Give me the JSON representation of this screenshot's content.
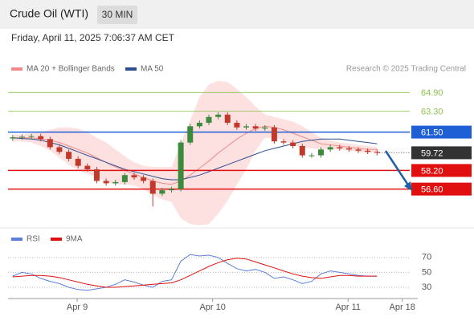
{
  "header": {
    "title": "Crude Oil (WTI)",
    "interval": "30 MIN",
    "timestamp": "Friday, April 11, 2025 7:06:37 AM CET",
    "credit": "Research © 2025 Trading Central"
  },
  "chart_data": [
    {
      "type": "candlestick",
      "xlim": [
        -0.5,
        42.5
      ],
      "ylim": [
        53.4,
        66.3
      ],
      "up_color": "#3c8a3c",
      "down_color": "#c0392b",
      "open": [
        60.95,
        61.05,
        61.1,
        61.15,
        60.9,
        60.2,
        59.8,
        59.2,
        58.6,
        58.3,
        57.3,
        57.1,
        57.2,
        57.8,
        57.6,
        57.3,
        56.2,
        56.5,
        56.6,
        60.6,
        62.0,
        62.3,
        62.8,
        63.0,
        62.3,
        61.9,
        62.0,
        61.8,
        61.9,
        60.7,
        60.6,
        60.3,
        59.5,
        59.5,
        60.0,
        60.2,
        60.1,
        60.0,
        59.9,
        59.8
      ],
      "high": [
        61.25,
        61.3,
        61.35,
        61.35,
        61.1,
        60.4,
        60.0,
        59.4,
        58.8,
        58.5,
        57.5,
        57.4,
        58.0,
        58.0,
        57.8,
        57.5,
        56.7,
        56.8,
        60.8,
        62.2,
        62.5,
        63.0,
        63.2,
        63.2,
        62.5,
        62.2,
        62.2,
        62.1,
        62.1,
        60.9,
        60.8,
        60.5,
        59.7,
        60.2,
        60.4,
        60.4,
        60.3,
        60.2,
        60.1,
        60.0
      ],
      "low": [
        60.75,
        60.85,
        60.9,
        60.7,
        60.0,
        59.6,
        59.0,
        58.4,
        58.1,
        57.1,
        56.9,
        56.9,
        57.0,
        57.4,
        57.1,
        55.1,
        56.0,
        56.3,
        56.4,
        60.4,
        61.8,
        62.1,
        62.6,
        62.1,
        61.7,
        61.7,
        61.6,
        61.6,
        60.5,
        60.4,
        60.1,
        59.3,
        59.3,
        59.3,
        59.8,
        59.9,
        59.8,
        59.7,
        59.6,
        59.5
      ],
      "close": [
        61.05,
        61.1,
        61.15,
        60.9,
        60.2,
        59.8,
        59.2,
        58.6,
        58.3,
        57.3,
        57.1,
        57.2,
        57.8,
        57.6,
        57.3,
        56.2,
        56.5,
        56.6,
        60.6,
        62.0,
        62.3,
        62.8,
        63.0,
        62.3,
        61.9,
        62.0,
        61.8,
        61.9,
        60.7,
        60.6,
        60.3,
        59.5,
        59.5,
        60.0,
        60.2,
        60.1,
        60.0,
        59.9,
        59.8,
        59.72
      ],
      "overlays": [
        {
          "name": "MA 20 + Bollinger Bands",
          "color": "#f08a8a",
          "band_color": "#fde0e0",
          "values": [
            61.0,
            61.0,
            61.0,
            60.9,
            60.8,
            60.6,
            60.3,
            60.0,
            59.7,
            59.3,
            58.9,
            58.5,
            58.2,
            57.9,
            57.6,
            57.3,
            57.1,
            57.0,
            57.3,
            57.8,
            58.4,
            59.0,
            59.7,
            60.3,
            60.9,
            61.4,
            61.8,
            62.0,
            61.9,
            61.7,
            61.4,
            61.1,
            60.8,
            60.5,
            60.4,
            60.3,
            60.2,
            60.1,
            60.0,
            60.0
          ],
          "upper": [
            61.3,
            61.3,
            61.4,
            61.5,
            61.7,
            61.9,
            61.9,
            61.8,
            61.5,
            61.0,
            60.6,
            60.0,
            59.4,
            58.9,
            58.6,
            58.5,
            58.5,
            58.5,
            60.5,
            62.5,
            64.5,
            65.6,
            65.9,
            65.8,
            65.2,
            64.5,
            63.7,
            63.0,
            62.8,
            62.6,
            62.4,
            62.0,
            61.5,
            61.0,
            60.8,
            60.6,
            60.5,
            60.4,
            60.3,
            60.2
          ],
          "lower": [
            60.7,
            60.7,
            60.6,
            60.3,
            59.9,
            59.3,
            58.7,
            58.2,
            57.9,
            57.6,
            57.2,
            57.0,
            57.0,
            56.9,
            56.6,
            56.1,
            55.7,
            55.5,
            54.1,
            53.6,
            53.5,
            53.6,
            54.5,
            55.6,
            57.0,
            58.3,
            59.9,
            61.0,
            61.0,
            60.8,
            60.4,
            60.2,
            60.1,
            60.0,
            60.0,
            60.0,
            59.9,
            59.8,
            59.7,
            59.8
          ]
        },
        {
          "name": "MA 50",
          "color": "#2c4f8f",
          "values": [
            61.0,
            60.95,
            60.9,
            60.8,
            60.6,
            60.4,
            60.1,
            59.8,
            59.5,
            59.2,
            58.9,
            58.6,
            58.3,
            58.1,
            57.9,
            57.7,
            57.5,
            57.4,
            57.4,
            57.6,
            57.8,
            58.1,
            58.4,
            58.7,
            59.0,
            59.3,
            59.6,
            59.9,
            60.1,
            60.3,
            60.5,
            60.7,
            60.8,
            60.9,
            60.9,
            60.9,
            60.8,
            60.7,
            60.6,
            60.5
          ]
        }
      ],
      "levels": [
        {
          "value": 64.9,
          "label": "64.90",
          "color": "#8bc34a",
          "style": "plain"
        },
        {
          "value": 63.3,
          "label": "63.30",
          "color": "#8bc34a",
          "style": "plain"
        },
        {
          "value": 61.5,
          "label": "61.50",
          "color": "#1f5fd6",
          "style": "box"
        },
        {
          "value": 59.72,
          "label": "59.72",
          "color": "#333333",
          "style": "current"
        },
        {
          "value": 58.2,
          "label": "58.20",
          "color": "#e01010",
          "style": "box"
        },
        {
          "value": 56.6,
          "label": "56.60",
          "color": "#e01010",
          "style": "box"
        }
      ]
    },
    {
      "type": "line",
      "xlim": [
        -0.5,
        42.5
      ],
      "ylim": [
        15,
        87
      ],
      "yticks": [
        70,
        50,
        30
      ],
      "grid": true,
      "xticks": [
        {
          "value": 6.9,
          "label": "Apr 9"
        },
        {
          "value": 21.4,
          "label": "Apr 10"
        },
        {
          "value": 35.9,
          "label": "Apr 11"
        },
        {
          "value": 41.7,
          "label": "Apr 18"
        }
      ],
      "series": [
        {
          "name": "RSI",
          "color": "#5b7fd6",
          "values": [
            45,
            50,
            48,
            42,
            38,
            35,
            30,
            27,
            26,
            28,
            30,
            34,
            40,
            37,
            33,
            30,
            38,
            40,
            65,
            74,
            72,
            73,
            70,
            62,
            55,
            52,
            54,
            50,
            42,
            44,
            40,
            35,
            38,
            48,
            52,
            50,
            48,
            46,
            45,
            45
          ]
        },
        {
          "name": "9MA",
          "color": "#e01010",
          "values": [
            44,
            45,
            46,
            46,
            45,
            43,
            40,
            37,
            34,
            32,
            30,
            30,
            31,
            32,
            33,
            34,
            35,
            36,
            40,
            46,
            52,
            58,
            63,
            67,
            69,
            68,
            64,
            60,
            56,
            52,
            48,
            45,
            43,
            42,
            44,
            46,
            46,
            45,
            45,
            45
          ]
        }
      ]
    }
  ]
}
